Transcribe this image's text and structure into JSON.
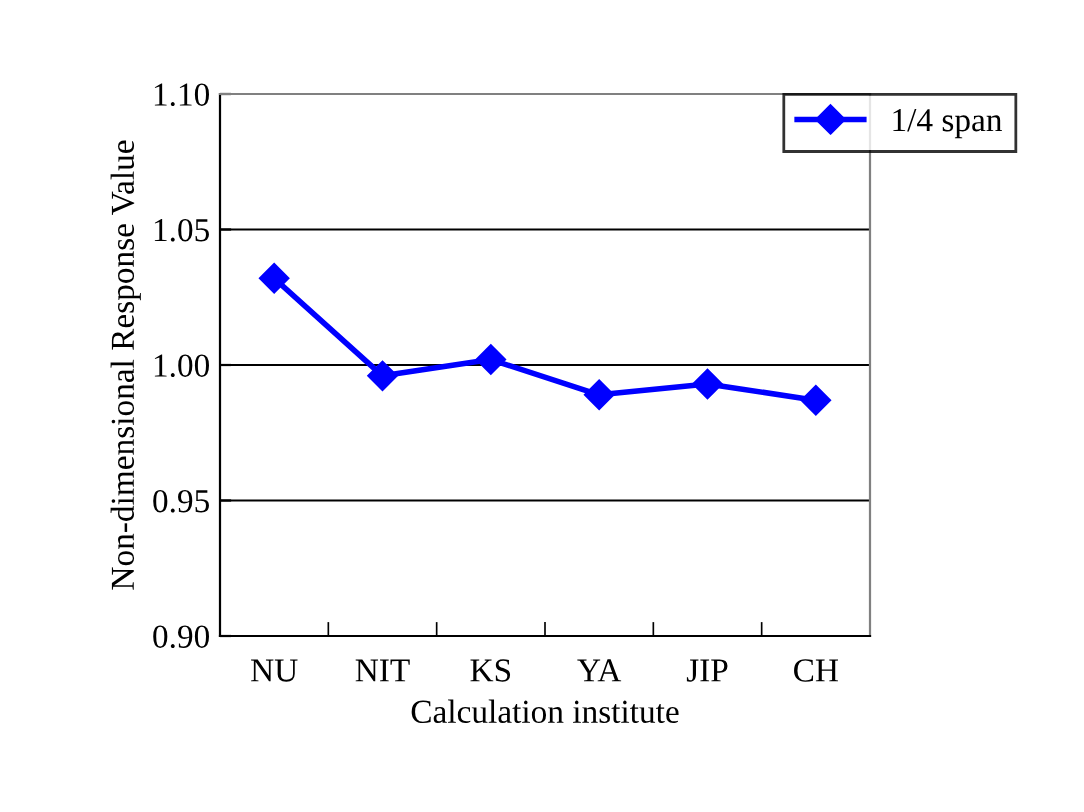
{
  "chart_data": {
    "type": "line",
    "xlabel": "Calculation institute",
    "ylabel": "Non-dimensional Response Value",
    "categories": [
      "NU",
      "NIT",
      "KS",
      "YA",
      "JIP",
      "CH"
    ],
    "series": [
      {
        "name": "1/4 span",
        "color": "#0000ff",
        "values": [
          1.032,
          0.996,
          1.002,
          0.989,
          0.993,
          0.987
        ]
      }
    ],
    "ylim": [
      0.9,
      1.1
    ],
    "yticks": [
      {
        "value": 0.9,
        "label": "0.90"
      },
      0.95,
      {
        "value": 1.0,
        "label": "1.00"
      },
      1.05,
      {
        "value": 1.1,
        "label": "1.10"
      }
    ],
    "grid": "y",
    "legend": "top right",
    "marker": "diamond",
    "line_style": "solid"
  }
}
